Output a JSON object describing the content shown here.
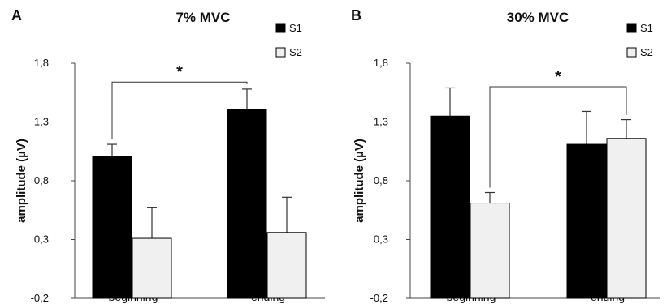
{
  "chart_data": [
    {
      "type": "bar",
      "panel_label": "A",
      "title": "7% MVC",
      "ylabel": "amplitude (µV)",
      "xlabel": "",
      "categories": [
        "beginning",
        "ending"
      ],
      "ylim": [
        -0.2,
        1.8
      ],
      "yticks": [
        "1,8",
        "1,3",
        "0,8",
        "0,3",
        "-0,2"
      ],
      "grid": false,
      "legend_position": "top-right",
      "series": [
        {
          "name": "S1",
          "color": "#000000",
          "values": [
            1.01,
            1.41
          ],
          "errors": [
            0.1,
            0.17
          ]
        },
        {
          "name": "S2",
          "color": "#f0f0f0",
          "values": [
            0.31,
            0.36
          ],
          "errors": [
            0.26,
            0.3
          ]
        }
      ],
      "significance": {
        "label": "*",
        "from": {
          "category": 0,
          "series": 0
        },
        "to": {
          "category": 1,
          "series": 0
        },
        "level": 1.64
      }
    },
    {
      "type": "bar",
      "panel_label": "B",
      "title": "30% MVC",
      "ylabel": "amplitude (µV)",
      "xlabel": "",
      "categories": [
        "beginning",
        "ending"
      ],
      "ylim": [
        -0.2,
        1.8
      ],
      "yticks": [
        "1,8",
        "1,3",
        "0,8",
        "0,3",
        "-0,2"
      ],
      "grid": false,
      "legend_position": "top-right",
      "series": [
        {
          "name": "S1",
          "color": "#000000",
          "values": [
            1.35,
            1.11
          ],
          "errors": [
            0.24,
            0.28
          ]
        },
        {
          "name": "S2",
          "color": "#f0f0f0",
          "values": [
            0.61,
            1.16
          ],
          "errors": [
            0.09,
            0.16
          ]
        }
      ],
      "significance": {
        "label": "*",
        "from": {
          "category": 0,
          "series": 1
        },
        "to": {
          "category": 1,
          "series": 1
        },
        "level": 1.6
      }
    }
  ]
}
